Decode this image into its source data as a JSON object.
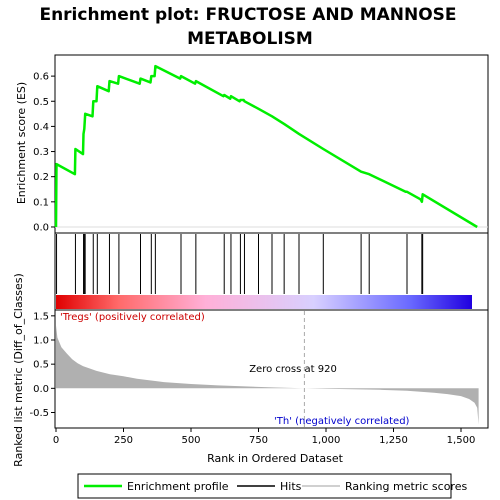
{
  "chart_data": [
    {
      "type": "line",
      "title": "Enrichment plot: FRUCTOSE AND MANNOSE METABOLISM",
      "title_lines": [
        "Enrichment plot: FRUCTOSE AND MANNOSE",
        "METABOLISM"
      ],
      "ylabel": "Enrichment score (ES)",
      "xlim": [
        0,
        1600
      ],
      "ylim": [
        -0.02,
        0.68
      ],
      "yticks": [
        0.0,
        0.1,
        0.2,
        0.3,
        0.4,
        0.5,
        0.6
      ],
      "ytick_labels": [
        "0.0",
        "0.1",
        "0.2",
        "0.3",
        "0.4",
        "0.5",
        "0.6"
      ],
      "line_color": "#00ee00",
      "series": [
        {
          "name": "Enrichment profile",
          "x": [
            0,
            2,
            70,
            72,
            100,
            102,
            105,
            108,
            135,
            138,
            150,
            153,
            195,
            198,
            230,
            233,
            310,
            313,
            350,
            353,
            365,
            368,
            460,
            463,
            515,
            518,
            620,
            623,
            645,
            648,
            680,
            683,
            695,
            698,
            750,
            800,
            845,
            900,
            990,
            1130,
            1160,
            1295,
            1300,
            1350,
            1355,
            1358,
            1560
          ],
          "y": [
            0.0,
            0.25,
            0.21,
            0.31,
            0.29,
            0.37,
            0.39,
            0.45,
            0.44,
            0.5,
            0.5,
            0.56,
            0.54,
            0.58,
            0.57,
            0.6,
            0.57,
            0.59,
            0.575,
            0.6,
            0.6,
            0.64,
            0.59,
            0.6,
            0.57,
            0.58,
            0.52,
            0.525,
            0.51,
            0.52,
            0.5,
            0.505,
            0.505,
            0.5,
            0.47,
            0.44,
            0.41,
            0.37,
            0.31,
            0.22,
            0.21,
            0.14,
            0.14,
            0.11,
            0.1,
            0.13,
            0.0
          ]
        }
      ]
    },
    {
      "type": "scatter",
      "title": "",
      "xlabel": "",
      "ylabel": "",
      "marks": "vertical hit lines",
      "series": [
        {
          "name": "Hits",
          "x": [
            2,
            72,
            102,
            105,
            108,
            138,
            153,
            198,
            233,
            313,
            353,
            368,
            463,
            518,
            623,
            648,
            683,
            698,
            750,
            800,
            845,
            900,
            990,
            1130,
            1160,
            1300,
            1355,
            1358
          ]
        }
      ]
    },
    {
      "type": "area",
      "title": "",
      "xlabel": "Rank in Ordered Dataset",
      "ylabel": "Ranked list metric (Diff_of_Classes)",
      "xlim": [
        0,
        1600
      ],
      "ylim": [
        -0.8,
        1.6
      ],
      "yticks": [
        -0.5,
        0.0,
        0.5,
        1.0,
        1.5
      ],
      "ytick_labels": [
        "-0.5",
        "0.0",
        "0.5",
        "1.0",
        "1.5"
      ],
      "xticks": [
        0,
        250,
        500,
        750,
        1000,
        1250,
        1500
      ],
      "xtick_labels": [
        "0",
        "250",
        "500",
        "750",
        "1,000",
        "1,250",
        "1,500"
      ],
      "series": [
        {
          "name": "Ranking metric scores",
          "x": [
            0,
            5,
            20,
            40,
            60,
            80,
            100,
            150,
            200,
            250,
            300,
            400,
            500,
            600,
            700,
            800,
            900,
            920,
            1000,
            1100,
            1200,
            1300,
            1400,
            1450,
            1500,
            1530,
            1550,
            1560,
            1565
          ],
          "y": [
            1.3,
            1.05,
            0.85,
            0.72,
            0.6,
            0.52,
            0.46,
            0.36,
            0.29,
            0.25,
            0.2,
            0.13,
            0.09,
            0.06,
            0.04,
            0.02,
            0.005,
            0.0,
            -0.01,
            -0.02,
            -0.03,
            -0.05,
            -0.09,
            -0.12,
            -0.16,
            -0.22,
            -0.3,
            -0.4,
            -0.75
          ]
        }
      ],
      "annotations": {
        "zero_cross": "Zero cross at 920",
        "zero_cross_x": 920,
        "pos_label": "'Tregs' (positively correlated)",
        "neg_label": "'Th' (negatively correlated)"
      },
      "colors": {
        "pos_label": "#cc0000",
        "neg_label": "#0000cc",
        "fill": "#b0b0b0",
        "zero_line": "#aaaaaa"
      }
    }
  ],
  "legend": {
    "items": [
      {
        "label": "Enrichment profile",
        "color": "#00ee00"
      },
      {
        "label": "Hits",
        "color": "#000000"
      },
      {
        "label": "Ranking metric scores",
        "color": "#c0c0c0"
      }
    ]
  },
  "color_bar": {
    "stops": [
      "#e00000",
      "#ff6a6a",
      "#ffb0d8",
      "#d8d0ff",
      "#6a6aff",
      "#2000e0"
    ]
  }
}
